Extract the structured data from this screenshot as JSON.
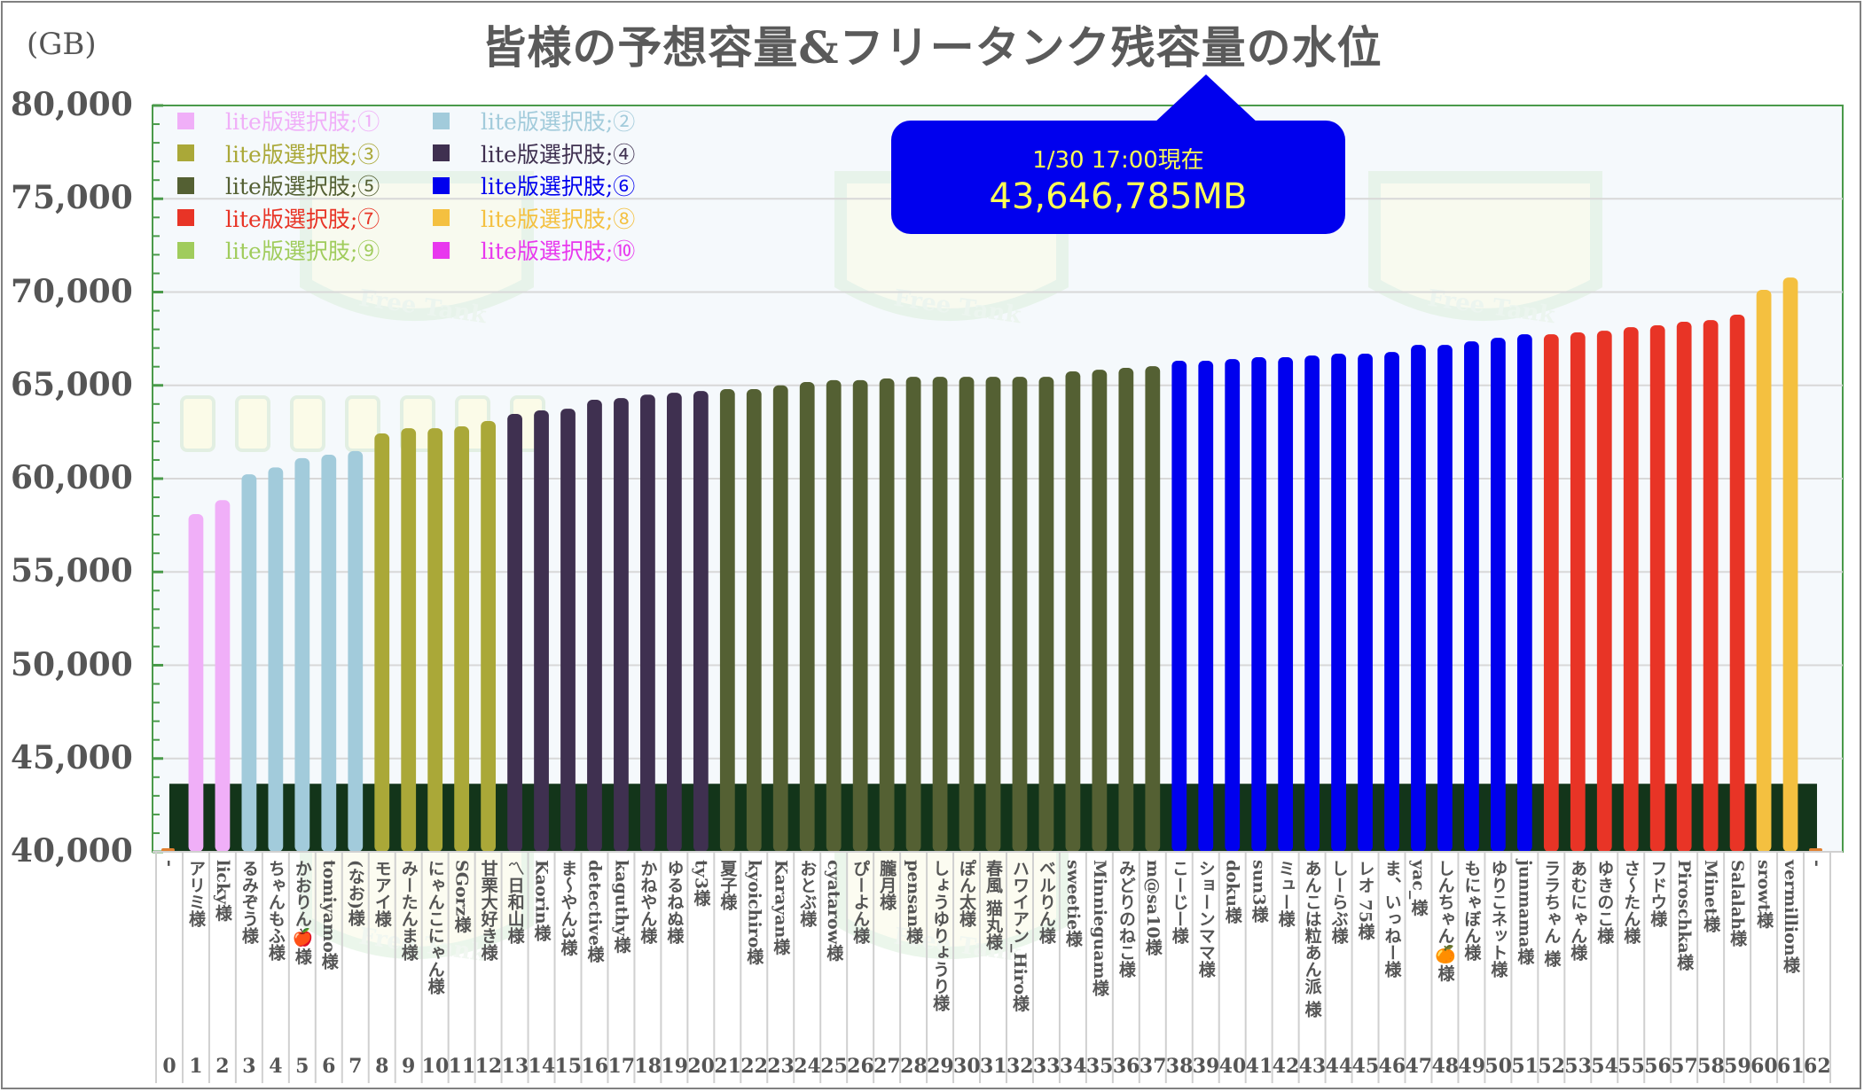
{
  "chart_data": {
    "type": "bar",
    "title": "皆様の予想容量&フリータンク残容量の水位",
    "ylabel": "(GB)",
    "xlabel": "",
    "ylim": [
      40000,
      80000
    ],
    "yticks": [
      80000,
      75000,
      70000,
      65000,
      60000,
      55000,
      50000,
      45000,
      40000
    ],
    "ytick_labels": [
      "80,000",
      "75,000",
      "70,000",
      "65,000",
      "60,000",
      "55,000",
      "50,000",
      "45,000",
      "40,000"
    ],
    "grid": true,
    "legend_position": "top-left",
    "legend": [
      {
        "label": "lite版選択肢;①",
        "color": "#f0aff8"
      },
      {
        "label": "lite版選択肢;②",
        "color": "#a2cbdb"
      },
      {
        "label": "lite版選択肢;③",
        "color": "#aaa838"
      },
      {
        "label": "lite版選択肢;④",
        "color": "#3f3050"
      },
      {
        "label": "lite版選択肢;⑤",
        "color": "#546033"
      },
      {
        "label": "lite版選択肢;⑥",
        "color": "#0000ee"
      },
      {
        "label": "lite版選択肢;⑦",
        "color": "#e83426"
      },
      {
        "label": "lite版選択肢;⑧",
        "color": "#f4c040"
      },
      {
        "label": "lite版選択肢;⑨",
        "color": "#a0cc5c"
      },
      {
        "label": "lite版選択肢;⑩",
        "color": "#e838ee"
      }
    ],
    "water_level": {
      "value_gb": 43646,
      "color": "#13351a",
      "label": "フリータンク残容量"
    },
    "categories": [
      "0",
      "1",
      "2",
      "3",
      "4",
      "5",
      "6",
      "7",
      "8",
      "9",
      "10",
      "11",
      "12",
      "13",
      "14",
      "15",
      "16",
      "17",
      "18",
      "19",
      "20",
      "21",
      "22",
      "23",
      "24",
      "25",
      "26",
      "27",
      "28",
      "29",
      "30",
      "31",
      "32",
      "33",
      "34",
      "35",
      "36",
      "37",
      "38",
      "39",
      "40",
      "41",
      "42",
      "43",
      "44",
      "45",
      "46",
      "47",
      "48",
      "49",
      "50",
      "51",
      "52",
      "53",
      "54",
      "55",
      "56",
      "57",
      "58",
      "59",
      "60",
      "61",
      "62"
    ],
    "names": [
      "-",
      "アリミ様",
      "licky様",
      "るみぞう様",
      "ちゃんもふ様",
      "かおりん🍎様",
      "tomiyamo様",
      "(なお)様",
      "モアイ様",
      "みーたんま様",
      "にゃんこにゃん様",
      "SGorz様",
      "甘栗大好き様",
      "〽日和山様",
      "Kaorin様",
      "ま～やん3様",
      "detective様",
      "kaguthy様",
      "かねやん様",
      "ゆるねぬ様",
      "ty3様",
      "夏子様",
      "kyoichiro様",
      "Karayan様",
      "おとぶ様",
      "cyatarow様",
      "ぴーよん様",
      "朧月様",
      "pensan様",
      "しょうゆりょうり様",
      "ぽん太様",
      "春風 猫丸様",
      "ハワイアン_Hiro様",
      "ベルりん様",
      "sweetie様",
      "Minnieguam様",
      "みどりのねこ様",
      "m@sa10様",
      "こーじー様",
      "ショーンママ様",
      "doku様",
      "sun3様",
      "ミュー様",
      "あんこは粒あん派 様",
      "しーらぶ様",
      "レオ 75様",
      "ま、いっねー様",
      "yac_様",
      "しんちゃん🍊様",
      "もにゃぼん様",
      "ゆりこネット様",
      "junmama様",
      "ララちゃん 様",
      "あむにゃん様",
      "ゆきのこ様",
      "さ～たん様",
      "フドウ様",
      "Piroschka様",
      "Minet様",
      "Salalah様",
      "srowt様",
      "vermillion様",
      "-"
    ],
    "values": [
      40000,
      58100,
      58850,
      60230,
      60600,
      61100,
      61280,
      61480,
      62420,
      62700,
      62700,
      62800,
      63090,
      63470,
      63660,
      63750,
      64230,
      64320,
      64500,
      64600,
      64700,
      64800,
      64800,
      65000,
      65180,
      65280,
      65280,
      65370,
      65460,
      65460,
      65460,
      65460,
      65460,
      65460,
      65750,
      65840,
      65940,
      66030,
      66320,
      66320,
      66410,
      66510,
      66510,
      66600,
      66700,
      66700,
      66790,
      67170,
      67170,
      67360,
      67550,
      67740,
      67740,
      67840,
      67930,
      68120,
      68220,
      68410,
      68500,
      68790,
      70120,
      70780,
      40000
    ],
    "groups": [
      0,
      1,
      1,
      2,
      2,
      2,
      2,
      2,
      3,
      3,
      3,
      3,
      3,
      4,
      4,
      4,
      4,
      4,
      4,
      4,
      4,
      5,
      5,
      5,
      5,
      5,
      5,
      5,
      5,
      5,
      5,
      5,
      5,
      5,
      5,
      5,
      5,
      5,
      6,
      6,
      6,
      6,
      6,
      6,
      6,
      6,
      6,
      6,
      6,
      6,
      6,
      6,
      7,
      7,
      7,
      7,
      7,
      7,
      7,
      7,
      8,
      8,
      0
    ]
  },
  "callout": {
    "date": "1/30 17:00現在",
    "value": "43,646,785MB"
  },
  "background_text": "Free Tank"
}
